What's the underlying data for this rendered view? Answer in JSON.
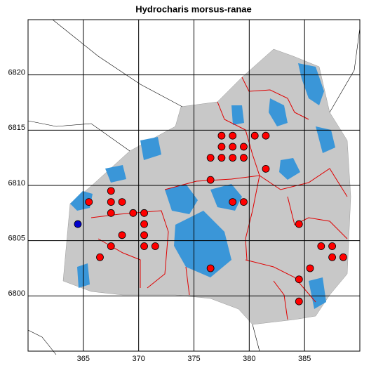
{
  "chart_data": {
    "type": "scatter",
    "title": "Hydrocharis morsus-ranae",
    "xlim": [
      360,
      390
    ],
    "ylim": [
      6795,
      6825
    ],
    "xticks": [
      365,
      370,
      375,
      380,
      385
    ],
    "yticks": [
      6800,
      6805,
      6810,
      6815,
      6820
    ],
    "grid": true,
    "series": [
      {
        "color": "#ff0000",
        "x": [
          365.5,
          367.5,
          367.5,
          368.5,
          367.5,
          369.5,
          370.5,
          370.5,
          368.5,
          370.5,
          367.5,
          370.5,
          371.5,
          366.5,
          377.5,
          378.5,
          380.5,
          381.5,
          377.5,
          378.5,
          379.5,
          376.5,
          377.5,
          378.5,
          379.5,
          381.5,
          376.5,
          378.5,
          379.5,
          384.5,
          386.5,
          387.5,
          387.5,
          388.5,
          385.5,
          376.5,
          384.5,
          384.5
        ],
        "y": [
          6808.5,
          6809.5,
          6808.5,
          6808.5,
          6807.5,
          6807.5,
          6807.5,
          6806.5,
          6805.5,
          6805.5,
          6804.5,
          6804.5,
          6804.5,
          6803.5,
          6814.5,
          6814.5,
          6814.5,
          6814.5,
          6813.5,
          6813.5,
          6813.5,
          6812.5,
          6812.5,
          6812.5,
          6812.5,
          6811.5,
          6810.5,
          6808.5,
          6808.5,
          6806.5,
          6804.5,
          6804.5,
          6803.5,
          6803.5,
          6802.5,
          6802.5,
          6801.5,
          6799.5
        ]
      },
      {
        "color": "#0000cc",
        "x": [
          364.5
        ],
        "y": [
          6806.5
        ]
      }
    ]
  }
}
